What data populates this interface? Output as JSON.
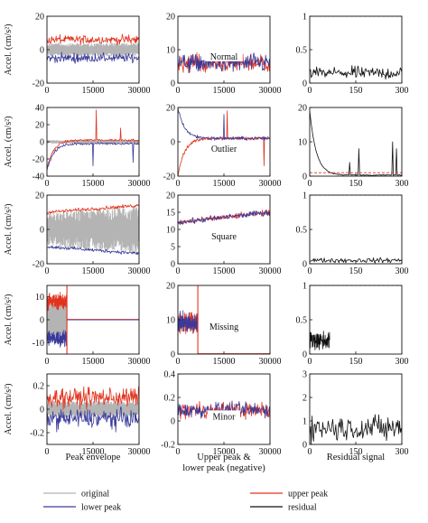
{
  "colors": {
    "original": "#b4b4b4",
    "upper": "#e2331e",
    "lower": "#3a3a9a",
    "residual": "#111111",
    "threshold": "#e2331e"
  },
  "ylabel": "Accel. (cm/s²)",
  "column_labels": [
    "Peak envelope",
    "Upper peak &",
    "lower peak (negative)",
    "Residual signal"
  ],
  "legend": [
    {
      "key": "original",
      "label": "original"
    },
    {
      "key": "upper",
      "label": "upper peak"
    },
    {
      "key": "lower",
      "label": "lower peak"
    },
    {
      "key": "residual",
      "label": "residual"
    }
  ],
  "chart_data": [
    {
      "type": "line",
      "row": "Normal",
      "column": "Peak envelope",
      "xlim": [
        0,
        30000
      ],
      "xticks": [
        0,
        15000,
        30000
      ],
      "ylim": [
        -20,
        20
      ],
      "yticks": [
        -20,
        0,
        20
      ],
      "series": [
        {
          "name": "original",
          "band": [
            -4,
            4
          ]
        },
        {
          "name": "upper peak",
          "level": 6,
          "noise": 4
        },
        {
          "name": "lower peak",
          "level": -5,
          "noise": 4
        }
      ]
    },
    {
      "type": "line",
      "row": "Normal",
      "column": "Upper peak & lower peak (negative)",
      "label": "Normal",
      "xlim": [
        0,
        30000
      ],
      "xticks": [
        0,
        15000,
        30000
      ],
      "ylim": [
        0,
        20
      ],
      "yticks": [
        0,
        10,
        20
      ],
      "series": [
        {
          "name": "upper peak",
          "level": 6,
          "noise": 4
        },
        {
          "name": "lower peak",
          "level": 6,
          "noise": 4
        }
      ]
    },
    {
      "type": "line",
      "row": "Normal",
      "column": "Residual signal",
      "xlim": [
        0,
        300
      ],
      "xticks": [
        0,
        150,
        300
      ],
      "ylim": [
        0,
        1
      ],
      "yticks": [
        0,
        0.5,
        1
      ],
      "threshold": 1,
      "series": [
        {
          "name": "residual",
          "level": 0.15,
          "noise": 0.14
        }
      ]
    },
    {
      "type": "line",
      "row": "Outlier",
      "column": "Peak envelope",
      "xlim": [
        0,
        30000
      ],
      "xticks": [
        0,
        15000,
        30000
      ],
      "ylim": [
        -40,
        40
      ],
      "yticks": [
        -40,
        -20,
        0,
        20,
        40
      ],
      "series": [
        {
          "name": "original",
          "band": [
            -2,
            2
          ]
        },
        {
          "name": "upper peak",
          "level": 2,
          "noise": 2,
          "start": -32
        },
        {
          "name": "lower peak",
          "level": -2,
          "noise": 2,
          "start": -34
        }
      ],
      "spikes": [
        {
          "series": "upper peak",
          "x": 16000,
          "y": 37
        },
        {
          "series": "lower peak",
          "x": 15000,
          "y": -28
        },
        {
          "series": "lower peak",
          "x": 28000,
          "y": -24
        },
        {
          "series": "upper peak",
          "x": 24000,
          "y": 16
        }
      ]
    },
    {
      "type": "line",
      "row": "Outlier",
      "column": "Upper peak & lower peak (negative)",
      "label": "Outlier",
      "xlim": [
        0,
        30000
      ],
      "xticks": [
        0,
        15000,
        30000
      ],
      "ylim": [
        -20,
        20
      ],
      "yticks": [
        -20,
        0,
        20
      ],
      "series": [
        {
          "name": "upper peak",
          "level": 2,
          "noise": 1.5,
          "start": -20
        },
        {
          "name": "lower peak",
          "level": 2,
          "noise": 1.5,
          "start": 20
        }
      ],
      "spikes": [
        {
          "series": "upper peak",
          "x": 16000,
          "y": 18
        },
        {
          "series": "lower peak",
          "x": 15000,
          "y": 16
        },
        {
          "series": "upper peak",
          "x": 28000,
          "y": -14
        }
      ]
    },
    {
      "type": "line",
      "row": "Outlier",
      "column": "Residual signal",
      "xlim": [
        0,
        300
      ],
      "xticks": [
        0,
        150,
        300
      ],
      "ylim": [
        0,
        20
      ],
      "yticks": [
        0,
        10,
        20
      ],
      "threshold": 1,
      "series": [
        {
          "name": "residual",
          "level": 0.3,
          "noise": 0.2,
          "start": 19
        }
      ],
      "spikes": [
        {
          "series": "residual",
          "x": 130,
          "y": 4
        },
        {
          "series": "residual",
          "x": 160,
          "y": 8
        },
        {
          "series": "residual",
          "x": 270,
          "y": 10
        },
        {
          "series": "residual",
          "x": 282,
          "y": 8
        }
      ]
    },
    {
      "type": "line",
      "row": "Square",
      "column": "Peak envelope",
      "xlim": [
        0,
        30000
      ],
      "xticks": [
        0,
        15000,
        30000
      ],
      "ylim": [
        -20,
        20
      ],
      "yticks": [
        -20,
        0,
        20
      ],
      "series": [
        {
          "name": "original",
          "band_from": [
            -10,
            10
          ],
          "band_to": [
            -14,
            14
          ]
        },
        {
          "name": "upper peak",
          "from": 10,
          "to": 14,
          "noise": 1.5
        },
        {
          "name": "lower peak",
          "from": -10,
          "to": -14,
          "noise": 1.5
        }
      ]
    },
    {
      "type": "line",
      "row": "Square",
      "column": "Upper peak & lower peak (negative)",
      "label": "Square",
      "xlim": [
        0,
        30000
      ],
      "xticks": [
        0,
        15000,
        30000
      ],
      "ylim": [
        0,
        20
      ],
      "yticks": [
        0,
        5,
        10,
        15,
        20
      ],
      "series": [
        {
          "name": "upper peak",
          "from": 12,
          "to": 15,
          "noise": 1.2
        },
        {
          "name": "lower peak",
          "from": 12,
          "to": 15,
          "noise": 1.2
        }
      ]
    },
    {
      "type": "line",
      "row": "Square",
      "column": "Residual signal",
      "xlim": [
        0,
        300
      ],
      "xticks": [
        0,
        150,
        300
      ],
      "ylim": [
        0,
        1
      ],
      "yticks": [
        0,
        0.5,
        1
      ],
      "threshold": 1,
      "series": [
        {
          "name": "residual",
          "level": 0.05,
          "noise": 0.05
        }
      ]
    },
    {
      "type": "line",
      "row": "Missing",
      "column": "Peak envelope",
      "xlim": [
        0,
        30000
      ],
      "xticks": [
        0,
        15000,
        30000
      ],
      "ylim": [
        -15,
        15
      ],
      "yticks": [
        -10,
        0,
        10
      ],
      "missing_after": 6500,
      "series": [
        {
          "name": "original",
          "band": [
            -7,
            7
          ]
        },
        {
          "name": "upper peak",
          "level": 8,
          "noise": 5
        },
        {
          "name": "lower peak",
          "level": -8,
          "noise": 5
        }
      ]
    },
    {
      "type": "line",
      "row": "Missing",
      "column": "Upper peak & lower peak (negative)",
      "label": "Missing",
      "xlim": [
        0,
        30000
      ],
      "xticks": [
        0,
        15000,
        30000
      ],
      "ylim": [
        0,
        20
      ],
      "yticks": [
        0,
        10,
        20
      ],
      "missing_after": 6500,
      "series": [
        {
          "name": "upper peak",
          "level": 9,
          "noise": 4
        },
        {
          "name": "lower peak",
          "level": 9,
          "noise": 4
        }
      ]
    },
    {
      "type": "line",
      "row": "Missing",
      "column": "Residual signal",
      "xlim": [
        0,
        300
      ],
      "xticks": [
        0,
        150,
        300
      ],
      "ylim": [
        0,
        1
      ],
      "yticks": [
        0,
        0.5,
        1
      ],
      "threshold": 1,
      "residual_end": 65,
      "series": [
        {
          "name": "residual",
          "level": 0.2,
          "noise": 0.2
        }
      ]
    },
    {
      "type": "line",
      "row": "Minor",
      "column": "Peak envelope",
      "xlim": [
        0,
        30000
      ],
      "xticks": [
        0,
        15000,
        30000
      ],
      "ylim": [
        -0.3,
        0.3
      ],
      "yticks": [
        -0.2,
        0,
        0.2
      ],
      "series": [
        {
          "name": "original",
          "band": [
            -0.07,
            0.07
          ]
        },
        {
          "name": "upper peak",
          "level": 0.1,
          "noise": 0.12
        },
        {
          "name": "lower peak",
          "level": -0.08,
          "noise": 0.12
        }
      ]
    },
    {
      "type": "line",
      "row": "Minor",
      "column": "Upper peak & lower peak (negative)",
      "label": "Minor",
      "xlim": [
        0,
        30000
      ],
      "xticks": [
        0,
        15000,
        30000
      ],
      "ylim": [
        -0.2,
        0.4
      ],
      "yticks": [
        -0.2,
        0,
        0.2,
        0.4
      ],
      "series": [
        {
          "name": "upper peak",
          "level": 0.09,
          "noise": 0.1
        },
        {
          "name": "lower peak",
          "level": 0.09,
          "noise": 0.1
        }
      ]
    },
    {
      "type": "line",
      "row": "Minor",
      "column": "Residual signal",
      "xlim": [
        0,
        300
      ],
      "xticks": [
        0,
        150,
        300
      ],
      "ylim": [
        0,
        3
      ],
      "yticks": [
        0,
        1,
        2,
        3
      ],
      "series": [
        {
          "name": "residual",
          "level": 0.7,
          "noise": 0.8
        }
      ]
    }
  ]
}
